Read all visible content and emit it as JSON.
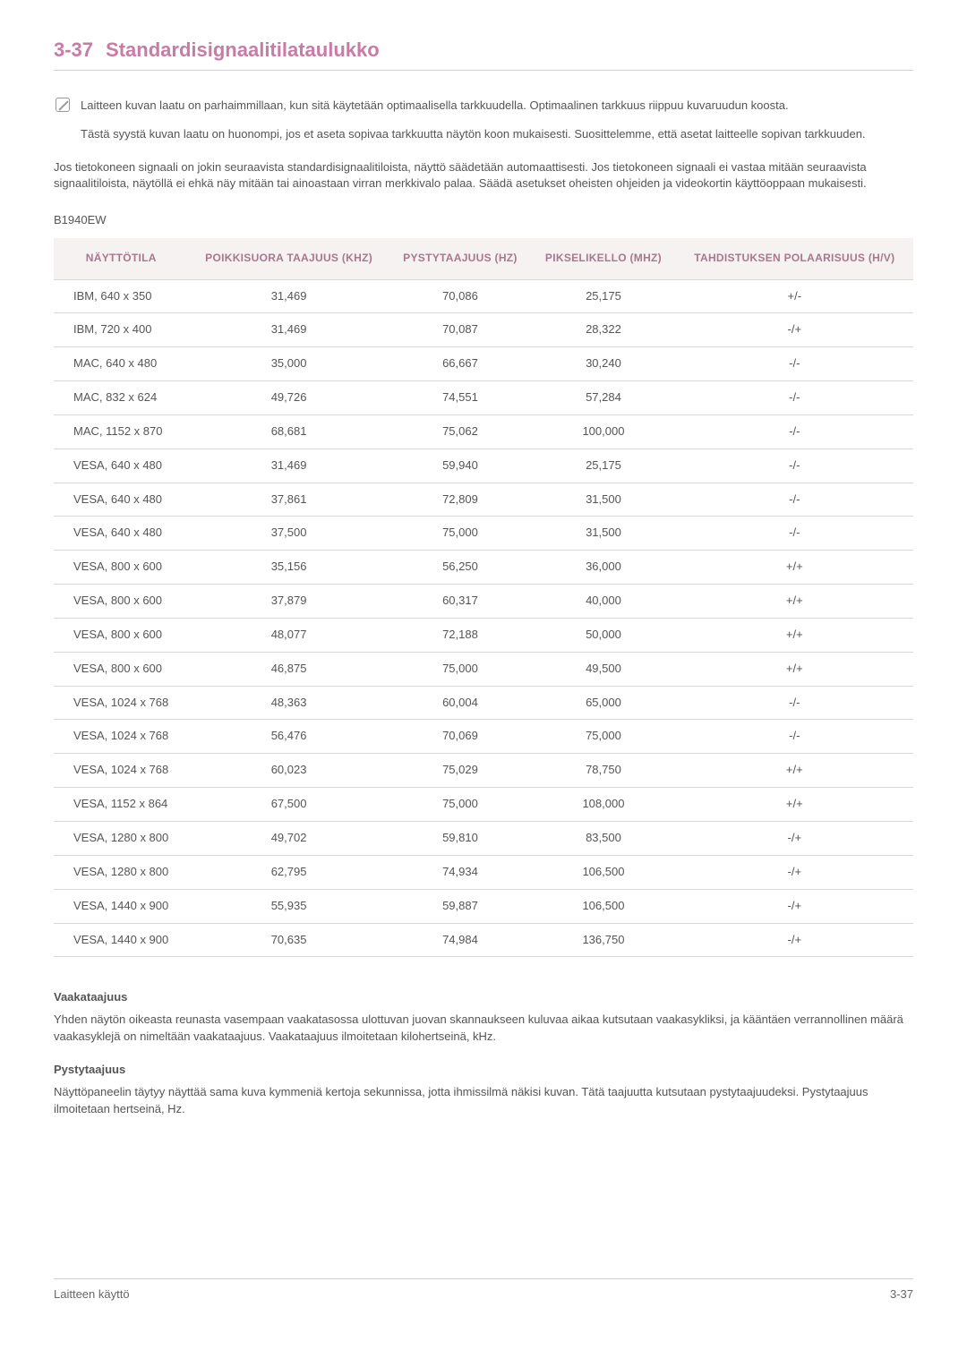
{
  "heading": {
    "number": "3-37",
    "title": "Standardisignaalitilataulukko"
  },
  "notes": {
    "para1": "Laitteen kuvan laatu on parhaimmillaan, kun sitä käytetään optimaalisella tarkkuudella. Optimaalinen tarkkuus riippuu kuvaruudun koosta.",
    "para2": "Tästä syystä kuvan laatu on huonompi, jos et aseta sopivaa tarkkuutta näytön koon mukaisesti. Suosittelemme, että asetat laitteelle sopivan tarkkuuden."
  },
  "intro": "Jos tietokoneen signaali on jokin seuraavista standardisignaalitiloista, näyttö säädetään automaattisesti. Jos tietokoneen signaali ei vastaa mitään seuraavista signaalitiloista, näytöllä ei ehkä näy mitään tai ainoastaan virran merkkivalo palaa. Säädä asetukset oheisten ohjeiden ja videokortin käyttöoppaan mukaisesti.",
  "model": "B1940EW",
  "table": {
    "columns": [
      "NÄYTTÖTILA",
      "POIKKISUORA TAAJUUS (KHZ)",
      "PYSTYTAAJUUS (HZ)",
      "PIKSELIKELLO (MHZ)",
      "TAHDISTUKSEN POLAARISUUS (H/V)"
    ],
    "rows": [
      [
        "IBM, 640 x 350",
        "31,469",
        "70,086",
        "25,175",
        "+/-"
      ],
      [
        "IBM, 720 x 400",
        "31,469",
        "70,087",
        "28,322",
        "-/+"
      ],
      [
        "MAC, 640 x 480",
        "35,000",
        "66,667",
        "30,240",
        "-/-"
      ],
      [
        "MAC, 832 x 624",
        "49,726",
        "74,551",
        "57,284",
        "-/-"
      ],
      [
        "MAC, 1152 x 870",
        "68,681",
        "75,062",
        "100,000",
        "-/-"
      ],
      [
        "VESA, 640 x 480",
        "31,469",
        "59,940",
        "25,175",
        "-/-"
      ],
      [
        "VESA, 640 x 480",
        "37,861",
        "72,809",
        "31,500",
        "-/-"
      ],
      [
        "VESA, 640 x 480",
        "37,500",
        "75,000",
        "31,500",
        "-/-"
      ],
      [
        "VESA, 800 x 600",
        "35,156",
        "56,250",
        "36,000",
        "+/+"
      ],
      [
        "VESA, 800 x 600",
        "37,879",
        "60,317",
        "40,000",
        "+/+"
      ],
      [
        "VESA, 800 x 600",
        "48,077",
        "72,188",
        "50,000",
        "+/+"
      ],
      [
        "VESA, 800 x 600",
        "46,875",
        "75,000",
        "49,500",
        "+/+"
      ],
      [
        "VESA, 1024 x 768",
        "48,363",
        "60,004",
        "65,000",
        "-/-"
      ],
      [
        "VESA, 1024 x 768",
        "56,476",
        "70,069",
        "75,000",
        "-/-"
      ],
      [
        "VESA, 1024 x 768",
        "60,023",
        "75,029",
        "78,750",
        "+/+"
      ],
      [
        "VESA, 1152 x 864",
        "67,500",
        "75,000",
        "108,000",
        "+/+"
      ],
      [
        "VESA, 1280 x 800",
        "49,702",
        "59,810",
        "83,500",
        "-/+"
      ],
      [
        "VESA, 1280 x 800",
        "62,795",
        "74,934",
        "106,500",
        "-/+"
      ],
      [
        "VESA, 1440 x 900",
        "55,935",
        "59,887",
        "106,500",
        "-/+"
      ],
      [
        "VESA, 1440 x 900",
        "70,635",
        "74,984",
        "136,750",
        "-/+"
      ]
    ]
  },
  "defs": [
    {
      "title": "Vaakataajuus",
      "body": "Yhden näytön oikeasta reunasta vasempaan vaakatasossa ulottuvan juovan skannaukseen kuluvaa aikaa kutsutaan vaakasykliksi, ja kääntäen verrannollinen määrä vaakasyklejä on nimeltään vaakataajuus. Vaakataajuus ilmoitetaan kilohertseinä, kHz."
    },
    {
      "title": "Pystytaajuus",
      "body": "Näyttöpaneelin täytyy näyttää sama kuva kymmeniä kertoja sekunnissa, jotta ihmissilmä näkisi kuvan. Tätä taajuutta kutsutaan pystytaajuudeksi. Pystytaajuus ilmoitetaan hertseinä, Hz."
    }
  ],
  "footer": {
    "left": "Laitteen käyttö",
    "right": "3-37"
  }
}
